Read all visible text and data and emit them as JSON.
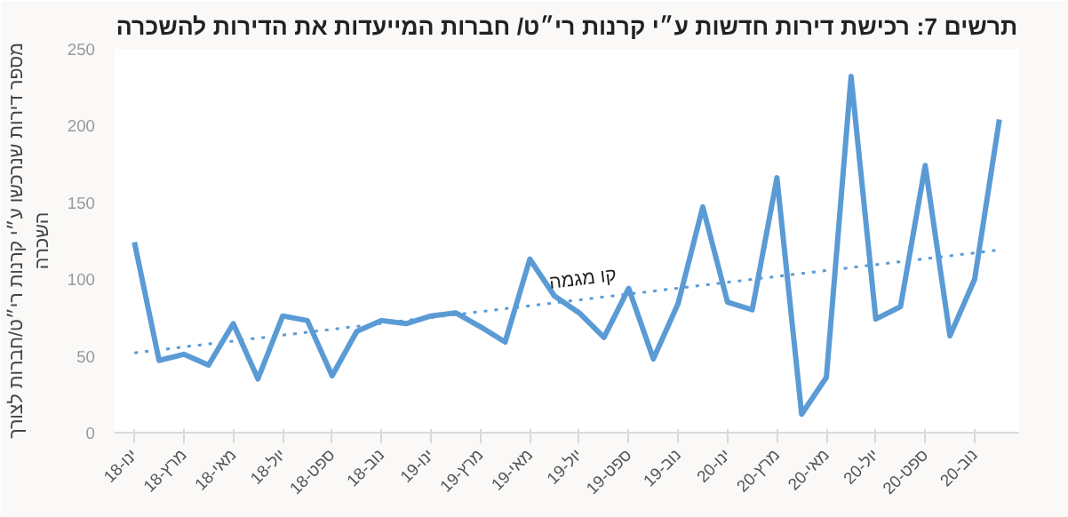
{
  "chart_data": {
    "type": "line",
    "title": "תרשים 7: רכישת דירות חדשות ע״י קרנות רי״ט/ חברות המייעדות את הדירות להשכרה",
    "ylabel": "מספר דירות שנרכשו ע״י קרנות רי״ט/חברות לצורך\nהשכרה",
    "categories": [
      "ינו-18",
      null,
      "מרץ-18",
      null,
      "מאי-18",
      null,
      "יול-18",
      null,
      "ספט-18",
      null,
      "נוב-18",
      null,
      "ינו-19",
      null,
      "מרץ-19",
      null,
      "מאי-19",
      null,
      "יול-19",
      null,
      "ספט-19",
      null,
      "נוב-19",
      null,
      "ינו-20",
      null,
      "מרץ-20",
      null,
      "מאי-20",
      null,
      "יול-20",
      null,
      "ספט-20",
      null,
      "נוב-20",
      null
    ],
    "series": [
      {
        "color": "#5b9bd5",
        "values": [
          124,
          47,
          51,
          44,
          71,
          35,
          76,
          73,
          37,
          66,
          73,
          71,
          76,
          78,
          69,
          59,
          113,
          89,
          78,
          62,
          94,
          48,
          84,
          147,
          85,
          80,
          166,
          12,
          36,
          232,
          74,
          82,
          174,
          63,
          100,
          204
        ]
      },
      {
        "type": "line",
        "color": "#5b9bd5",
        "line_style": "dotted",
        "values": [
          52,
          null,
          null,
          null,
          null,
          null,
          null,
          null,
          null,
          null,
          null,
          null,
          null,
          null,
          null,
          null,
          null,
          null,
          null,
          null,
          null,
          null,
          null,
          null,
          null,
          null,
          null,
          null,
          null,
          null,
          null,
          null,
          null,
          null,
          null,
          119
        ]
      }
    ],
    "annotations": [
      "קו מגמה"
    ],
    "ylim": [
      0,
      250
    ],
    "yticks": [
      0,
      50,
      100,
      150,
      200,
      250
    ],
    "grid": false,
    "marker": "none",
    "line_style": "solid"
  }
}
